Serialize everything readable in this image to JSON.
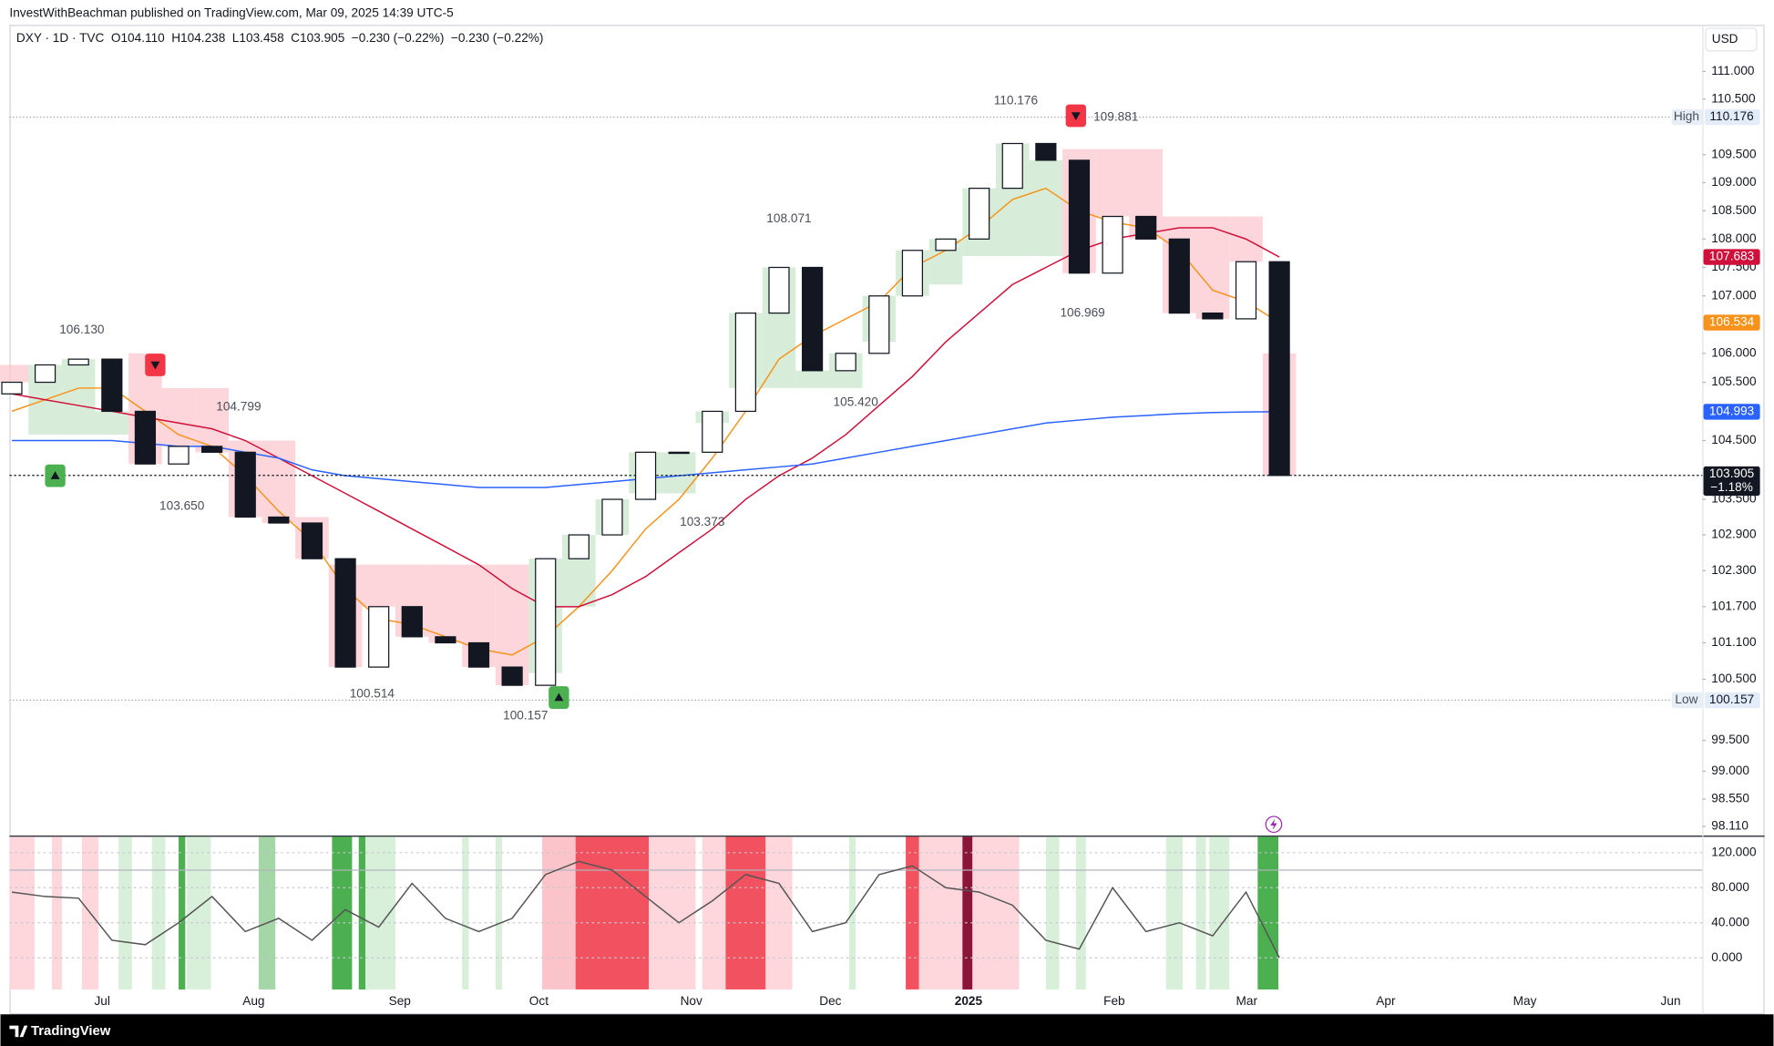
{
  "header": {
    "publisher": "InvestWithBeachman published on TradingView.com, Mar 09, 2025 14:39 UTC-5",
    "symbol_line": [
      "DXY · 1D · TVC",
      "O104.110",
      "H104.238",
      "L103.458",
      "C103.905",
      "−0.230 (−0.22%)",
      "−0.230 (−0.22%)"
    ],
    "currency": "USD"
  },
  "footer": {
    "brand": "TradingView"
  },
  "chart_data": [
    {
      "type": "candlestick",
      "log_scale": true,
      "x": [
        0,
        1,
        2,
        3,
        4,
        5,
        6,
        7,
        8,
        9,
        10,
        11,
        12,
        13,
        14,
        15,
        16,
        17,
        18,
        19,
        20,
        21,
        22,
        23,
        24,
        25,
        26,
        27,
        28,
        29,
        30,
        31,
        32,
        33,
        34,
        35,
        36,
        37,
        38
      ],
      "open": [
        105.3,
        105.5,
        105.8,
        105.9,
        105.0,
        104.1,
        104.4,
        104.3,
        103.2,
        103.1,
        102.5,
        100.7,
        101.7,
        101.2,
        101.1,
        100.7,
        100.4,
        102.5,
        102.9,
        103.5,
        104.3,
        104.3,
        105.0,
        106.7,
        107.5,
        105.7,
        106.0,
        107.0,
        107.8,
        108.0,
        108.9,
        109.7,
        109.4,
        107.4,
        108.4,
        108.0,
        106.7,
        106.6,
        107.6
      ],
      "high": {
        "label": "High",
        "value": 110.176
      },
      "low": {
        "label": "Low",
        "value": 100.157
      },
      "close": [
        105.5,
        105.8,
        105.9,
        105.0,
        104.1,
        104.4,
        104.3,
        103.2,
        103.1,
        102.5,
        100.7,
        101.7,
        101.2,
        101.1,
        100.7,
        100.4,
        102.5,
        102.9,
        103.5,
        104.3,
        104.3,
        105.0,
        106.7,
        107.5,
        105.7,
        106.0,
        107.0,
        107.8,
        108.0,
        108.9,
        109.7,
        109.4,
        107.4,
        108.4,
        108.0,
        106.7,
        106.6,
        107.6,
        103.905
      ],
      "up_color": "#ffffff",
      "down_color": "#131722",
      "wick_color": "#131722",
      "lines": [
        {
          "color": "#f7931a",
          "last_value": 106.534,
          "values": [
            105.0,
            105.2,
            105.4,
            105.4,
            105.0,
            104.6,
            104.4,
            103.9,
            103.3,
            102.8,
            102.0,
            101.5,
            101.4,
            101.2,
            101.0,
            100.9,
            101.2,
            101.7,
            102.3,
            103.0,
            103.5,
            104.2,
            105.0,
            105.9,
            106.3,
            106.6,
            106.9,
            107.5,
            107.8,
            108.2,
            108.7,
            108.9,
            108.5,
            108.3,
            108.2,
            107.8,
            107.1,
            106.9,
            106.534
          ]
        },
        {
          "color": "#d0103a",
          "last_value": 107.683,
          "values": [
            105.3,
            105.2,
            105.1,
            105.0,
            104.9,
            104.8,
            104.7,
            104.5,
            104.2,
            103.9,
            103.6,
            103.3,
            103.0,
            102.7,
            102.4,
            102.0,
            101.7,
            101.7,
            101.9,
            102.2,
            102.6,
            103.0,
            103.5,
            103.9,
            104.2,
            104.6,
            105.1,
            105.6,
            106.2,
            106.7,
            107.2,
            107.5,
            107.8,
            108.0,
            108.1,
            108.2,
            108.2,
            108.0,
            107.683
          ]
        },
        {
          "color": "#2962ff",
          "last_value": 104.993,
          "values": [
            104.5,
            104.5,
            104.5,
            104.5,
            104.45,
            104.4,
            104.4,
            104.3,
            104.2,
            104.0,
            103.9,
            103.85,
            103.8,
            103.75,
            103.7,
            103.7,
            103.7,
            103.75,
            103.8,
            103.85,
            103.9,
            103.95,
            104.0,
            104.05,
            104.1,
            104.2,
            104.3,
            104.4,
            104.5,
            104.6,
            104.7,
            104.8,
            104.85,
            104.9,
            104.93,
            104.96,
            104.98,
            104.99,
            104.993
          ]
        }
      ],
      "trail": {
        "up_color": "#c8e6c9",
        "down_color": "#fbc4cb",
        "values": [
          105.8,
          104.6,
          104.6,
          104.6,
          106.0,
          105.4,
          105.4,
          104.5,
          104.5,
          103.2,
          102.4,
          102.4,
          102.4,
          102.4,
          102.4,
          102.4,
          100.6,
          101.7,
          102.9,
          103.6,
          103.6,
          104.8,
          105.4,
          105.4,
          105.4,
          105.4,
          106.2,
          107.0,
          107.2,
          107.7,
          107.7,
          107.7,
          109.6,
          109.6,
          109.6,
          108.4,
          108.4,
          108.4,
          106.0
        ],
        "direction": [
          "down",
          "up",
          "up",
          "up",
          "down",
          "down",
          "down",
          "down",
          "down",
          "down",
          "down",
          "down",
          "down",
          "down",
          "down",
          "down",
          "up",
          "up",
          "up",
          "up",
          "up",
          "up",
          "up",
          "up",
          "up",
          "up",
          "up",
          "up",
          "up",
          "up",
          "up",
          "up",
          "down",
          "down",
          "down",
          "down",
          "down",
          "down",
          "down"
        ]
      },
      "signals": [
        {
          "x": 1.3,
          "value": 103.9,
          "direction": "up"
        },
        {
          "x": 4.3,
          "value": 105.8,
          "direction": "down"
        },
        {
          "x": 16.4,
          "value": 100.2,
          "direction": "up"
        },
        {
          "x": 31.9,
          "value": 110.2,
          "direction": "down"
        }
      ],
      "annotations": [
        {
          "x": 2.1,
          "value": 106.13,
          "label": "106.130",
          "side": "above"
        },
        {
          "x": 6.8,
          "value": 104.799,
          "label": "104.799",
          "side": "above"
        },
        {
          "x": 5.1,
          "value": 103.65,
          "label": "103.650",
          "side": "below"
        },
        {
          "x": 10.8,
          "value": 100.514,
          "label": "100.514",
          "side": "below"
        },
        {
          "x": 15.4,
          "value": 100.157,
          "label": "100.157",
          "side": "below"
        },
        {
          "x": 23.3,
          "value": 108.071,
          "label": "108.071",
          "side": "above"
        },
        {
          "x": 25.3,
          "value": 105.42,
          "label": "105.420",
          "side": "below"
        },
        {
          "x": 20.7,
          "value": 103.373,
          "label": "103.373",
          "side": "below"
        },
        {
          "x": 30.1,
          "value": 110.176,
          "label": "110.176",
          "side": "above"
        },
        {
          "x": 33.1,
          "value": 109.881,
          "label": "109.881",
          "side": "above"
        },
        {
          "x": 32.1,
          "value": 106.969,
          "label": "106.969",
          "side": "below"
        }
      ],
      "last": {
        "value": 103.905,
        "change": {
          "value": -1.18,
          "label": "−1.18%"
        }
      },
      "xlim": [
        -0.07,
        50.68
      ],
      "xticks": [
        {
          "value": 2.71,
          "label": "Jul"
        },
        {
          "value": 7.25,
          "label": "Aug"
        },
        {
          "value": 11.63,
          "label": "Sep"
        },
        {
          "value": 15.8,
          "label": "Oct"
        },
        {
          "value": 20.37,
          "label": "Nov"
        },
        {
          "value": 24.54,
          "label": "Dec"
        },
        {
          "value": 28.68,
          "label": "2025",
          "bold": true
        },
        {
          "value": 33.05,
          "label": "Feb"
        },
        {
          "value": 37.02,
          "label": "Mar"
        },
        {
          "value": 41.19,
          "label": "Apr"
        },
        {
          "value": 45.36,
          "label": "May"
        },
        {
          "value": 49.73,
          "label": "Jun"
        }
      ],
      "ylim": [
        97.98,
        111.89
      ],
      "yticks": [
        {
          "value": 111,
          "label": "111.000"
        },
        {
          "value": 110.5,
          "label": "110.500"
        },
        {
          "value": 109.5,
          "label": "109.500"
        },
        {
          "value": 109,
          "label": "109.000"
        },
        {
          "value": 108.5,
          "label": "108.500"
        },
        {
          "value": 108,
          "label": "108.000"
        },
        {
          "value": 107.5,
          "label": "107.500"
        },
        {
          "value": 107,
          "label": "107.000"
        },
        {
          "value": 106,
          "label": "106.000"
        },
        {
          "value": 105.5,
          "label": "105.500"
        },
        {
          "value": 104.5,
          "label": "104.500"
        },
        {
          "value": 103.5,
          "label": "103.500"
        },
        {
          "value": 102.9,
          "label": "102.900"
        },
        {
          "value": 102.3,
          "label": "102.300"
        },
        {
          "value": 101.7,
          "label": "101.700"
        },
        {
          "value": 101.1,
          "label": "101.100"
        },
        {
          "value": 100.5,
          "label": "100.500"
        },
        {
          "value": 99.5,
          "label": "99.500"
        },
        {
          "value": 99,
          "label": "99.000"
        },
        {
          "value": 98.55,
          "label": "98.550"
        },
        {
          "value": 98.11,
          "label": "98.110"
        }
      ]
    },
    {
      "type": "line",
      "color": "#555555",
      "x": [
        0,
        1,
        2,
        3,
        4,
        5,
        6,
        7,
        8,
        9,
        10,
        11,
        12,
        13,
        14,
        15,
        16,
        17,
        18,
        19,
        20,
        21,
        22,
        23,
        24,
        25,
        26,
        27,
        28,
        29,
        30,
        31,
        32,
        33,
        34,
        35,
        36,
        37,
        38
      ],
      "values": [
        75,
        70,
        68,
        20,
        15,
        40,
        70,
        30,
        45,
        20,
        55,
        35,
        85,
        45,
        30,
        45,
        95,
        110,
        100,
        70,
        40,
        65,
        95,
        85,
        30,
        40,
        95,
        105,
        80,
        75,
        60,
        20,
        10,
        80,
        30,
        40,
        25,
        75,
        0
      ],
      "reference": 100,
      "bands": [
        [
          -0.07,
          0.68,
          "#fdd7dc"
        ],
        [
          1.2,
          1.5,
          "#fdd7dc"
        ],
        [
          2.1,
          2.6,
          "#fdd7dc"
        ],
        [
          3.2,
          3.6,
          "#d8efd9"
        ],
        [
          4.2,
          4.6,
          "#d8efd9"
        ],
        [
          5.0,
          5.2,
          "#4caf50"
        ],
        [
          5.25,
          5.97,
          "#d8efd9"
        ],
        [
          7.4,
          7.9,
          "#a5d6a7"
        ],
        [
          9.6,
          10.2,
          "#4caf50"
        ],
        [
          10.4,
          10.6,
          "#4caf50"
        ],
        [
          10.6,
          11.5,
          "#d8efd9"
        ],
        [
          13.5,
          13.7,
          "#d8efd9"
        ],
        [
          14.5,
          14.7,
          "#d8efd9"
        ],
        [
          15.9,
          16.9,
          "#fbc4cb"
        ],
        [
          16.9,
          19.1,
          "#f2525f"
        ],
        [
          19.1,
          20.5,
          "#fdd7dc"
        ],
        [
          20.7,
          21.4,
          "#fdd7dc"
        ],
        [
          21.4,
          22.6,
          "#f2525f"
        ],
        [
          22.6,
          23.4,
          "#fdd7dc"
        ],
        [
          25.1,
          25.3,
          "#d8efd9"
        ],
        [
          26.8,
          27.2,
          "#f2525f"
        ],
        [
          27.2,
          28.5,
          "#fdd7dc"
        ],
        [
          28.5,
          28.8,
          "#8b1538"
        ],
        [
          28.8,
          30.2,
          "#fdd7dc"
        ],
        [
          31.0,
          31.4,
          "#d8efd9"
        ],
        [
          31.9,
          32.2,
          "#d8efd9"
        ],
        [
          34.6,
          35.1,
          "#d8efd9"
        ],
        [
          35.5,
          35.8,
          "#d8efd9"
        ],
        [
          35.9,
          36.5,
          "#d8efd9"
        ],
        [
          37.35,
          37.97,
          "#4caf50"
        ]
      ],
      "xlim": [
        -0.07,
        50.68
      ],
      "ylim": [
        -36.1,
        138.1
      ],
      "yticks": [
        {
          "value": 120,
          "label": "120.000"
        },
        {
          "value": 80,
          "label": "80.000"
        },
        {
          "value": 40,
          "label": "40.000"
        },
        {
          "value": 0,
          "label": "0.000"
        }
      ]
    }
  ]
}
